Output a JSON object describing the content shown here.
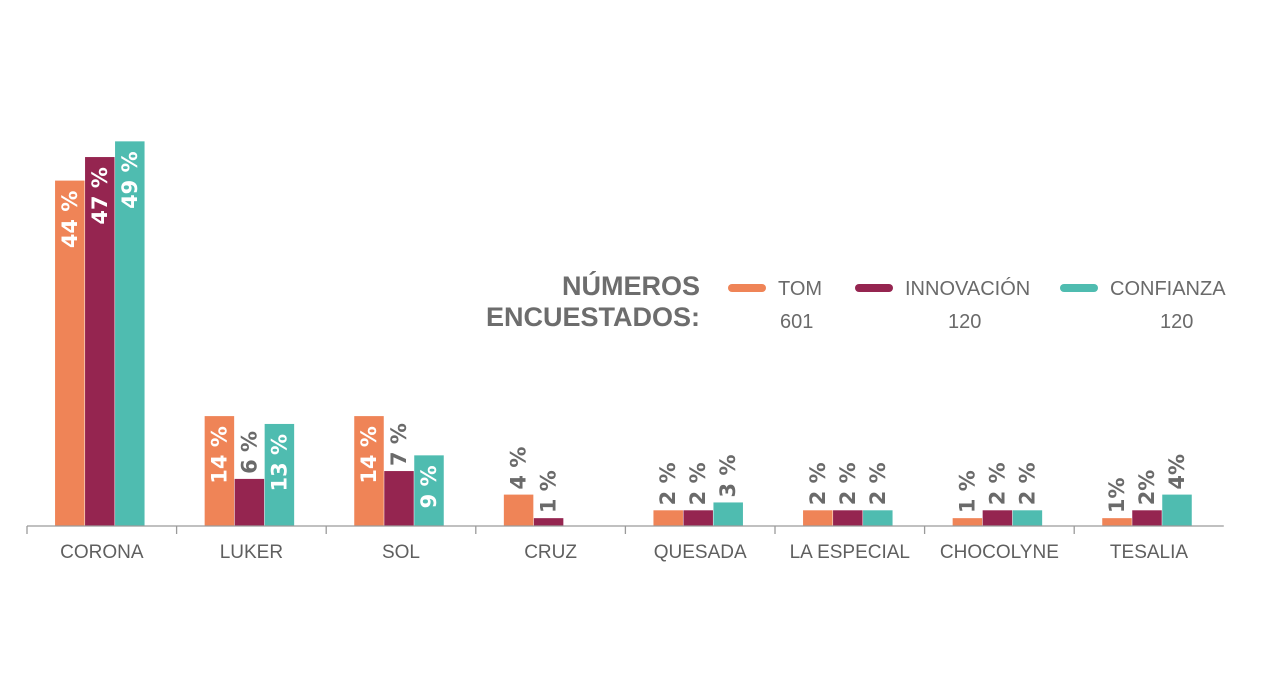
{
  "chart_data": {
    "type": "bar",
    "categories": [
      "CORONA",
      "LUKER",
      "SOL",
      "CRUZ",
      "QUESADA",
      "LA ESPECIAL",
      "CHOCOLYNE",
      "TESALIA"
    ],
    "series": [
      {
        "name": "TOM",
        "count": "601",
        "color": "#ef8457",
        "values": [
          44,
          14,
          14,
          4,
          2,
          2,
          1,
          1
        ],
        "labels": [
          "44 %",
          "14 %",
          "14 %",
          "4 %",
          "2 %",
          "2 %",
          "1 %",
          "1%"
        ]
      },
      {
        "name": "INNOVACIÓN",
        "count": "120",
        "color": "#952550",
        "values": [
          47,
          6,
          7,
          1,
          2,
          2,
          2,
          2
        ],
        "labels": [
          "47 %",
          "6 %",
          "7 %",
          "1 %",
          "2 %",
          "2 %",
          "2 %",
          "2%"
        ]
      },
      {
        "name": "CONFIANZA",
        "count": "120",
        "color": "#4fbcb0",
        "values": [
          49,
          13,
          9,
          null,
          3,
          2,
          2,
          4
        ],
        "labels": [
          "49 %",
          "13 %",
          "9 %",
          null,
          "3 %",
          "2 %",
          "2 %",
          "4%"
        ]
      }
    ],
    "ylim": [
      0,
      49
    ],
    "legend": {
      "title_lines": [
        "NÚMEROS",
        "ENCUESTADOS:"
      ],
      "placement": "top-right"
    }
  }
}
